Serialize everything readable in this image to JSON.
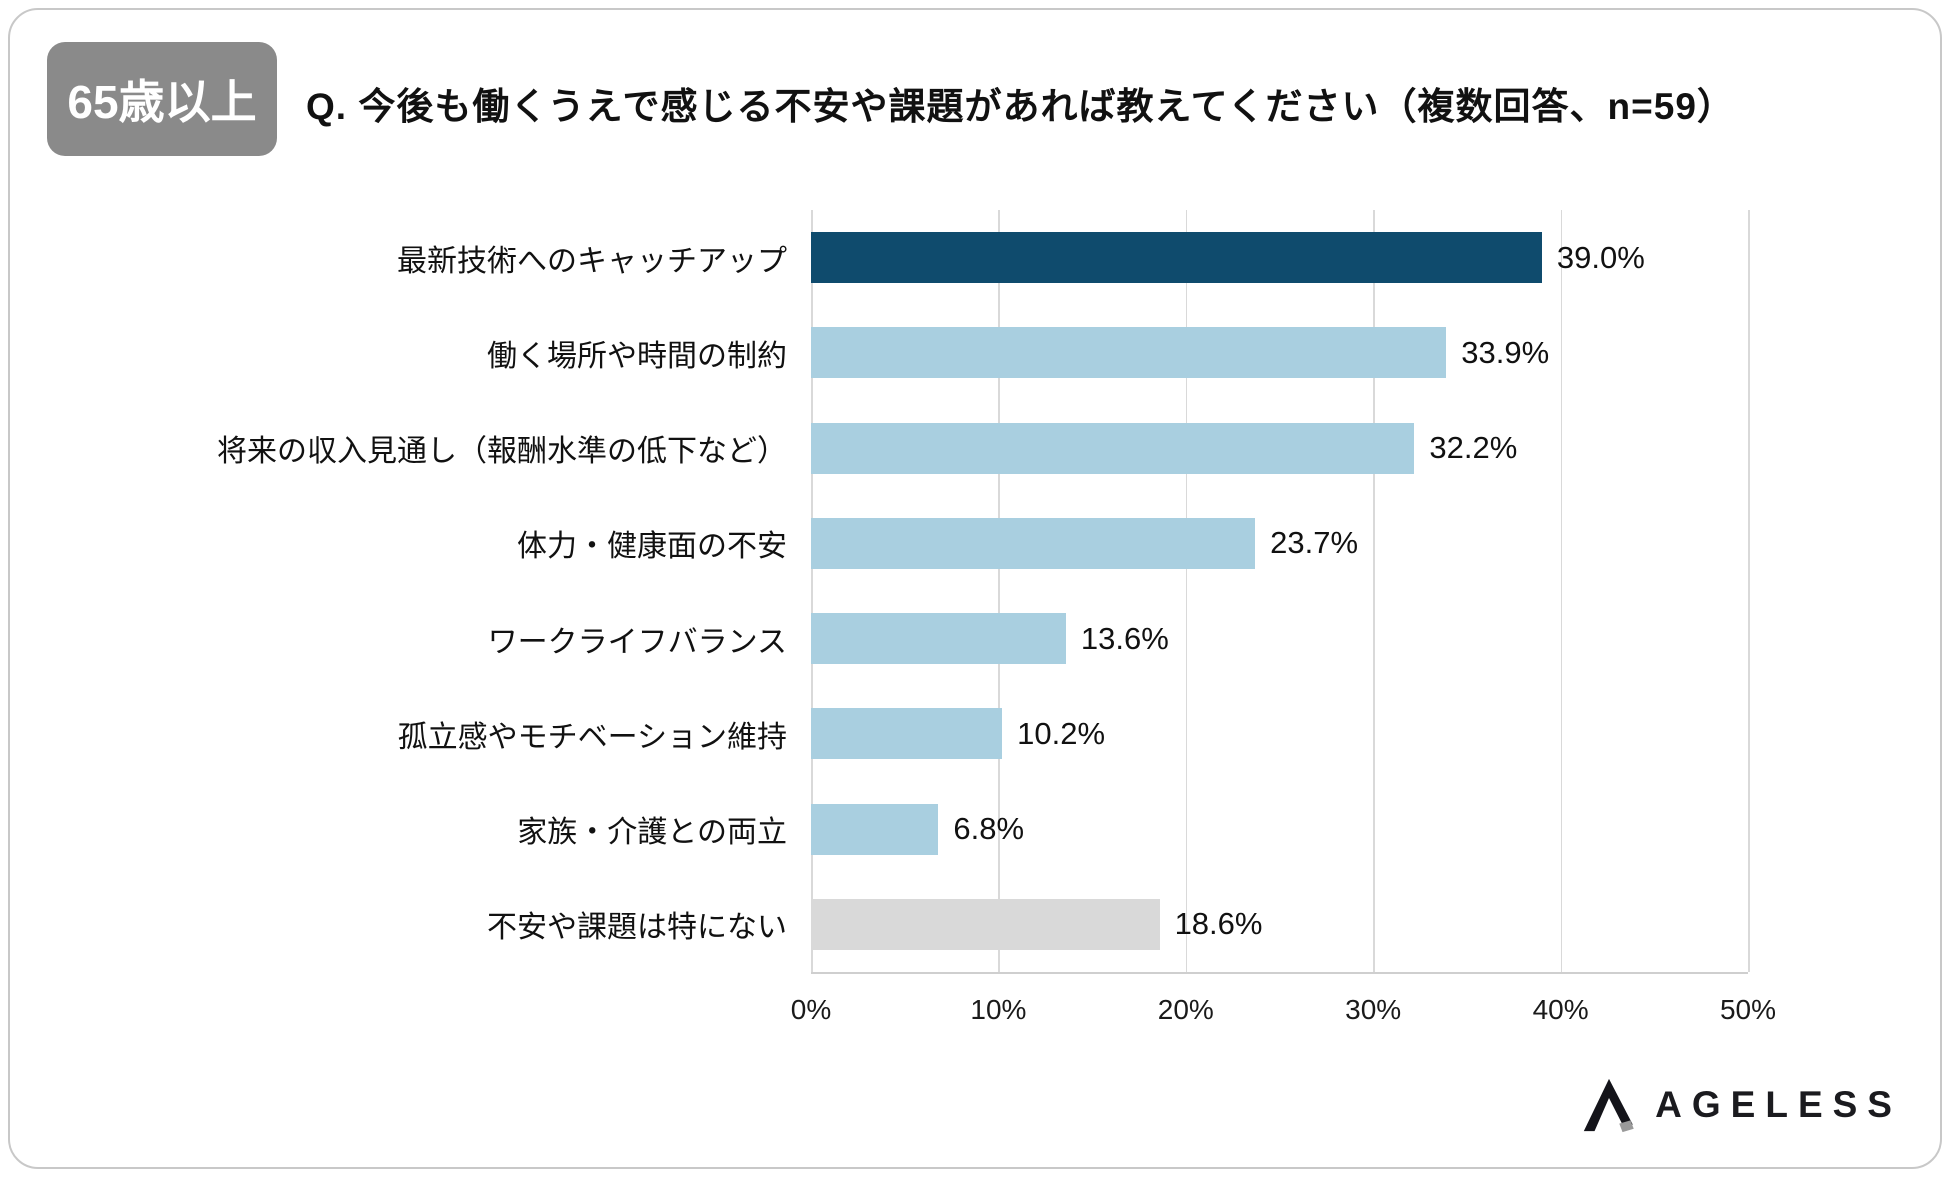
{
  "header": {
    "badge": {
      "label": "65歳以上",
      "bg": "#8a8a8a",
      "text_color": "#ffffff"
    },
    "question": "Q. 今後も働くうえで感じる不安や課題があれば教えてください（複数回答、n=59）"
  },
  "chart_data": {
    "type": "bar",
    "orientation": "horizontal",
    "title": "Q. 今後も働くうえで感じる不安や課題があれば教えてください（複数回答、n=59）",
    "group": "65歳以上",
    "n": 59,
    "categories": [
      "最新技術へのキャッチアップ",
      "働く場所や時間の制約",
      "将来の収入見通し（報酬水準の低下など）",
      "体力・健康面の不安",
      "ワークライフバランス",
      "孤立感やモチベーション維持",
      "家族・介護との両立",
      "不安や課題は特にない"
    ],
    "values": [
      39.0,
      33.9,
      32.2,
      23.7,
      13.6,
      10.2,
      6.8,
      18.6
    ],
    "value_labels": [
      "39.0%",
      "33.9%",
      "32.2%",
      "23.7%",
      "13.6%",
      "10.2%",
      "6.8%",
      "18.6%"
    ],
    "bar_colors": [
      "#0f4b6d",
      "#a9cfe0",
      "#a9cfe0",
      "#a9cfe0",
      "#a9cfe0",
      "#a9cfe0",
      "#a9cfe0",
      "#d9d9d9"
    ],
    "colors": {
      "highlight": "#0f4b6d",
      "default": "#a9cfe0",
      "neutral": "#d9d9d9",
      "gridline": "#d9d9d9"
    },
    "xlim": [
      0,
      50
    ],
    "x_ticks": [
      "0%",
      "10%",
      "20%",
      "30%",
      "40%",
      "50%"
    ],
    "x_tick_values": [
      0,
      10,
      20,
      30,
      40,
      50
    ],
    "grid": true,
    "legend": false
  },
  "footer": {
    "logo_text": "AGELESS"
  }
}
